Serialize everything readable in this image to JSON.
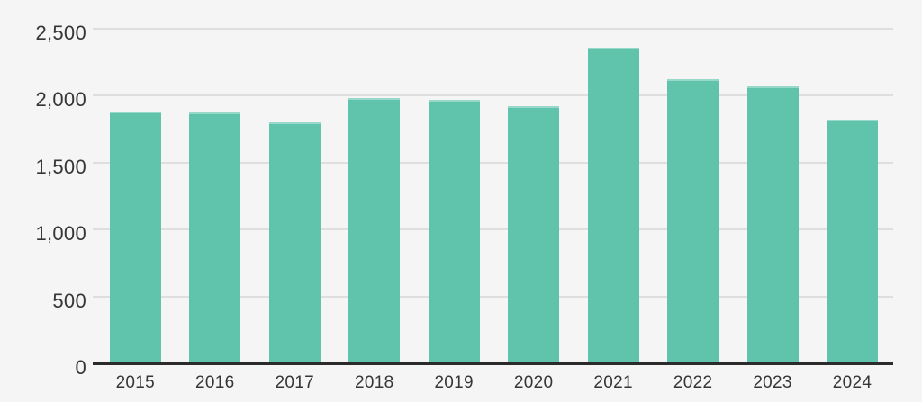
{
  "chart_data": {
    "type": "bar",
    "title": "",
    "xlabel": "",
    "ylabel": "",
    "categories": [
      "2015",
      "2016",
      "2017",
      "2018",
      "2019",
      "2020",
      "2021",
      "2022",
      "2023",
      "2024"
    ],
    "values": [
      1885,
      1875,
      1800,
      1985,
      1970,
      1920,
      2360,
      2125,
      2070,
      1820
    ],
    "ylim": [
      0,
      2500
    ],
    "ytick_interval": 500,
    "ytick_labels": [
      "0",
      "500",
      "1,000",
      "1,500",
      "2,000",
      "2,500"
    ],
    "grid": "horizontal",
    "legend": "none",
    "colors": {
      "bar": "#60c3ab",
      "background": "#f4f5f4",
      "gridline": "#dedede",
      "axis_line": "#2b2b2b",
      "tick_label": "#363636"
    }
  }
}
